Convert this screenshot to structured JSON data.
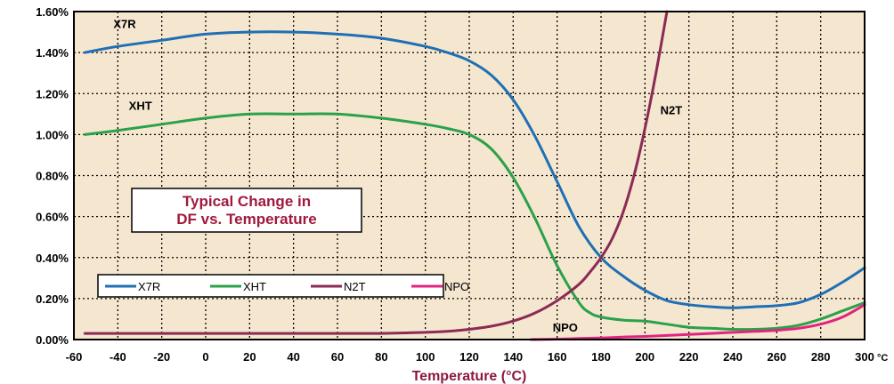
{
  "chart_data": {
    "type": "line",
    "title": "Typical Change in DF vs. Temperature",
    "title_lines": [
      "Typical Change in",
      "DF vs. Temperature"
    ],
    "xlabel": "Temperature (°C)",
    "ylabel": "",
    "x_unit_suffix": "°C",
    "xlim": [
      -60,
      300
    ],
    "ylim": [
      0,
      1.6
    ],
    "x_ticks": [
      -60,
      -40,
      -20,
      0,
      20,
      40,
      60,
      80,
      100,
      120,
      140,
      160,
      180,
      200,
      220,
      240,
      260,
      280,
      300
    ],
    "x_tick_labels": [
      "-60",
      "-40",
      "-20",
      "0",
      "20",
      "40",
      "60",
      "80",
      "100",
      "120",
      "140",
      "160",
      "180",
      "200",
      "220",
      "240",
      "260",
      "280",
      "300"
    ],
    "y_ticks": [
      0,
      0.2,
      0.4,
      0.6,
      0.8,
      1.0,
      1.2,
      1.4,
      1.6
    ],
    "y_tick_labels": [
      "0.00%",
      "0.20%",
      "0.40%",
      "0.60%",
      "0.80%",
      "1.00%",
      "1.20%",
      "1.40%",
      "1.60%"
    ],
    "grid": true,
    "grid_style": "dotted",
    "background_color": "#f5e6cf",
    "legend_position": "bottom-left",
    "series": [
      {
        "name": "X7R",
        "color": "#1f6fb5",
        "x": [
          -55,
          -40,
          -20,
          0,
          20,
          40,
          60,
          80,
          100,
          110,
          120,
          130,
          140,
          150,
          160,
          170,
          180,
          190,
          200,
          210,
          220,
          230,
          240,
          250,
          260,
          270,
          280,
          290,
          300
        ],
        "y": [
          1.4,
          1.43,
          1.46,
          1.49,
          1.5,
          1.5,
          1.49,
          1.47,
          1.43,
          1.4,
          1.36,
          1.29,
          1.17,
          0.99,
          0.77,
          0.55,
          0.4,
          0.31,
          0.24,
          0.19,
          0.17,
          0.16,
          0.155,
          0.16,
          0.165,
          0.18,
          0.22,
          0.28,
          0.35
        ]
      },
      {
        "name": "XHT",
        "color": "#2aa14a",
        "x": [
          -55,
          -40,
          -20,
          0,
          20,
          40,
          60,
          80,
          100,
          110,
          120,
          130,
          140,
          150,
          160,
          170,
          175,
          180,
          190,
          200,
          210,
          220,
          230,
          240,
          250,
          260,
          270,
          280,
          290,
          300
        ],
        "y": [
          1.0,
          1.02,
          1.05,
          1.08,
          1.1,
          1.1,
          1.1,
          1.08,
          1.05,
          1.03,
          1.0,
          0.93,
          0.79,
          0.59,
          0.36,
          0.18,
          0.13,
          0.11,
          0.095,
          0.09,
          0.075,
          0.06,
          0.055,
          0.05,
          0.05,
          0.055,
          0.07,
          0.1,
          0.14,
          0.18
        ]
      },
      {
        "name": "N2T",
        "color": "#8b2a55",
        "x": [
          -55,
          -40,
          -20,
          0,
          20,
          40,
          60,
          80,
          100,
          110,
          120,
          130,
          140,
          150,
          160,
          170,
          175,
          180,
          185,
          190,
          195,
          200,
          205,
          210
        ],
        "y": [
          0.03,
          0.03,
          0.03,
          0.03,
          0.03,
          0.03,
          0.03,
          0.03,
          0.035,
          0.04,
          0.05,
          0.065,
          0.09,
          0.13,
          0.19,
          0.27,
          0.33,
          0.4,
          0.49,
          0.62,
          0.8,
          1.03,
          1.3,
          1.6
        ]
      },
      {
        "name": "NPO",
        "color": "#e0247f",
        "x": [
          148,
          160,
          170,
          180,
          190,
          200,
          210,
          220,
          230,
          240,
          250,
          260,
          270,
          280,
          290,
          300
        ],
        "y": [
          0.0,
          0.002,
          0.005,
          0.008,
          0.012,
          0.015,
          0.02,
          0.025,
          0.03,
          0.035,
          0.04,
          0.045,
          0.055,
          0.075,
          0.11,
          0.17
        ]
      }
    ],
    "annotations": [
      {
        "text": "X7R",
        "x": -42,
        "y": 1.52
      },
      {
        "text": "XHT",
        "x": -35,
        "y": 1.12
      },
      {
        "text": "N2T",
        "x": 207,
        "y": 1.1
      },
      {
        "text": "NPO",
        "x": 158,
        "y": 0.04
      }
    ]
  }
}
